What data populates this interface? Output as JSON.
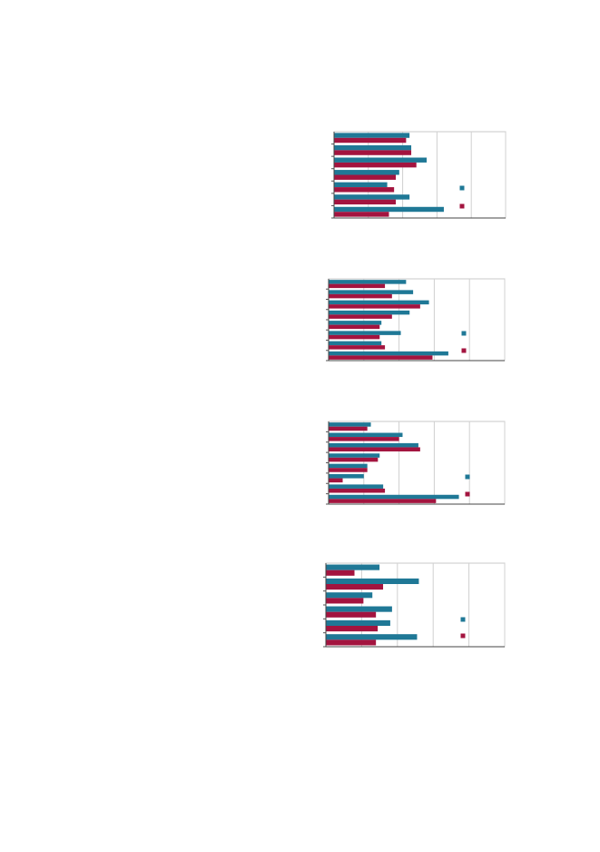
{
  "chart_data": [
    {
      "type": "bar",
      "orientation": "horizontal",
      "categories": [
        null,
        null,
        null,
        null,
        null,
        null,
        null
      ],
      "series": [
        {
          "color": "#1f7896",
          "values": [
            2.2,
            2.25,
            2.7,
            1.9,
            1.55,
            2.2,
            3.2
          ]
        },
        {
          "color": "#a3143f",
          "values": [
            2.1,
            2.25,
            2.4,
            1.8,
            1.75,
            1.8,
            1.6
          ]
        }
      ],
      "xlim": [
        0,
        5
      ],
      "xticks": [
        0,
        1,
        2,
        3,
        4,
        5
      ],
      "grid": true,
      "legend": "right"
    },
    {
      "type": "bar",
      "orientation": "horizontal",
      "categories": [
        null,
        null,
        null,
        null,
        null,
        null,
        null,
        null
      ],
      "series": [
        {
          "color": "#1f7896",
          "values": [
            2.2,
            2.4,
            2.85,
            2.3,
            1.5,
            2.05,
            1.5,
            3.4
          ]
        },
        {
          "color": "#a3143f",
          "values": [
            1.6,
            1.8,
            2.6,
            1.8,
            1.45,
            1.45,
            1.6,
            2.95
          ]
        }
      ],
      "xlim": [
        0,
        5
      ],
      "xticks": [
        0,
        1,
        2,
        3,
        4,
        5
      ],
      "grid": true,
      "legend": "right"
    },
    {
      "type": "bar",
      "orientation": "horizontal",
      "categories": [
        null,
        null,
        null,
        null,
        null,
        null,
        null,
        null
      ],
      "series": [
        {
          "color": "#1f7896",
          "values": [
            1.2,
            2.1,
            2.55,
            1.45,
            1.1,
            1.0,
            1.55,
            3.7
          ]
        },
        {
          "color": "#a3143f",
          "values": [
            1.1,
            2.0,
            2.6,
            1.4,
            1.1,
            0.4,
            1.6,
            3.05
          ]
        }
      ],
      "xlim": [
        0,
        5
      ],
      "xticks": [
        0,
        1,
        2,
        3,
        4,
        5
      ],
      "grid": true,
      "legend": "right"
    },
    {
      "type": "bar",
      "orientation": "horizontal",
      "categories": [
        null,
        null,
        null,
        null,
        null,
        null
      ],
      "series": [
        {
          "color": "#1f7896",
          "values": [
            1.5,
            2.6,
            1.3,
            1.85,
            1.8,
            2.55
          ]
        },
        {
          "color": "#a3143f",
          "values": [
            0.8,
            1.6,
            1.05,
            1.4,
            1.45,
            1.4
          ]
        }
      ],
      "xlim": [
        0,
        5
      ],
      "xticks": [
        0,
        1,
        2,
        3,
        4,
        5
      ],
      "grid": true,
      "legend": "right"
    }
  ]
}
